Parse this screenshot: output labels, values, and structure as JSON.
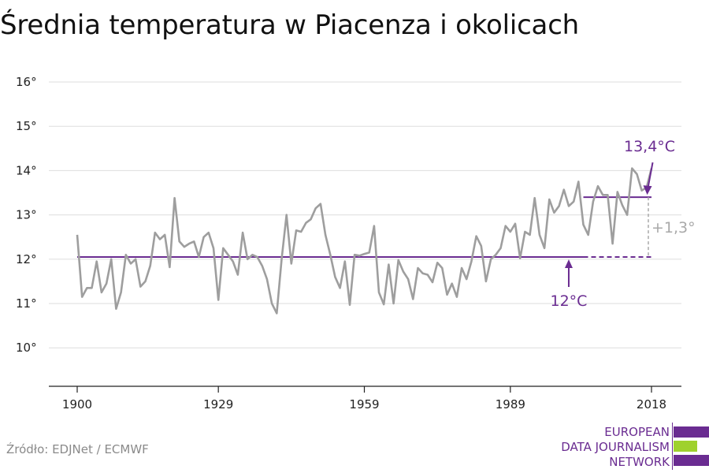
{
  "title": "Średnia temperatura w Piacenza i okolicach",
  "source": "Źródło: EDJNet / ECMWF",
  "logo": {
    "lines": [
      "EUROPEAN",
      "DATA JOURNALISM",
      "NETWORK"
    ],
    "colors": {
      "purple": "#6a2c91",
      "green": "#9fd12e"
    }
  },
  "colors": {
    "line": "#9e9e9e",
    "avg": "#6a2c91",
    "diff": "#a9a9a9",
    "grid": "#dddddd"
  },
  "chart_data": {
    "type": "line",
    "title": "Średnia temperatura w Piacenza i okolicach",
    "xlabel": "",
    "ylabel": "",
    "ylim": [
      9.2,
      16.3
    ],
    "xlim": [
      1900,
      2018
    ],
    "x_ticks": [
      1900,
      1929,
      1959,
      1989,
      2018
    ],
    "y_ticks": [
      {
        "value": 10,
        "label": "10°"
      },
      {
        "value": 11,
        "label": "11°"
      },
      {
        "value": 12,
        "label": "12°"
      },
      {
        "value": 13,
        "label": "13°"
      },
      {
        "value": 14,
        "label": "14°"
      },
      {
        "value": 15,
        "label": "15°"
      },
      {
        "value": 16,
        "label": "16°"
      }
    ],
    "grid": true,
    "series": [
      {
        "x": [
          1900,
          1901,
          1902,
          1903,
          1904,
          1905,
          1906,
          1907,
          1908,
          1909,
          1910,
          1911,
          1912,
          1913,
          1914,
          1915,
          1916,
          1917,
          1918,
          1919,
          1920,
          1921,
          1922,
          1923,
          1924,
          1925,
          1926,
          1927,
          1928,
          1929,
          1930,
          1931,
          1932,
          1933,
          1934,
          1935,
          1936,
          1937,
          1938,
          1939,
          1940,
          1941,
          1942,
          1943,
          1944,
          1945,
          1946,
          1947,
          1948,
          1949,
          1950,
          1951,
          1952,
          1953,
          1954,
          1955,
          1956,
          1957,
          1958,
          1959,
          1960,
          1961,
          1962,
          1963,
          1964,
          1965,
          1966,
          1967,
          1968,
          1969,
          1970,
          1971,
          1972,
          1973,
          1974,
          1975,
          1976,
          1977,
          1978,
          1979,
          1980,
          1981,
          1982,
          1983,
          1984,
          1985,
          1986,
          1987,
          1988,
          1989,
          1990,
          1991,
          1992,
          1993,
          1994,
          1995,
          1996,
          1997,
          1998,
          1999,
          2000,
          2001,
          2002,
          2003,
          2004,
          2005,
          2006,
          2007,
          2008,
          2009,
          2010,
          2011,
          2012,
          2013,
          2014,
          2015,
          2016,
          2017,
          2018
        ],
        "values": [
          12.55,
          11.15,
          11.35,
          11.35,
          11.95,
          11.25,
          11.45,
          12.0,
          10.88,
          11.25,
          12.1,
          11.9,
          12.0,
          11.38,
          11.5,
          11.85,
          12.6,
          12.45,
          12.55,
          11.82,
          13.38,
          12.4,
          12.28,
          12.35,
          12.4,
          12.05,
          12.5,
          12.6,
          12.25,
          11.08,
          12.25,
          12.1,
          11.95,
          11.65,
          12.6,
          12.0,
          12.1,
          12.05,
          11.85,
          11.55,
          11.0,
          10.78,
          12.0,
          13.0,
          11.9,
          12.65,
          12.62,
          12.82,
          12.9,
          13.15,
          13.25,
          12.55,
          12.1,
          11.6,
          11.35,
          11.95,
          10.97,
          12.1,
          12.08,
          12.12,
          12.15,
          12.75,
          11.25,
          10.98,
          11.88,
          11.0,
          11.98,
          11.72,
          11.55,
          11.1,
          11.8,
          11.68,
          11.65,
          11.48,
          11.92,
          11.8,
          11.2,
          11.45,
          11.15,
          11.8,
          11.55,
          11.95,
          12.52,
          12.3,
          11.5,
          12.0,
          12.1,
          12.25,
          12.75,
          12.62,
          12.8,
          12.02,
          12.62,
          12.55,
          13.38,
          12.55,
          12.25,
          13.35,
          13.05,
          13.2,
          13.57,
          13.2,
          13.3,
          13.75,
          12.78,
          12.55,
          13.3,
          13.65,
          13.45,
          13.45,
          12.35,
          13.52,
          13.22,
          13.0,
          14.05,
          13.92,
          13.55,
          13.62,
          14.05
        ]
      }
    ],
    "averages": [
      {
        "label": "12°C",
        "value": 12.05,
        "x_start": 1900,
        "x_end": 2004
      },
      {
        "label": "13,4°C",
        "value": 13.4,
        "x_start": 2004,
        "x_end": 2018
      }
    ],
    "difference_label": "+1,3°"
  }
}
